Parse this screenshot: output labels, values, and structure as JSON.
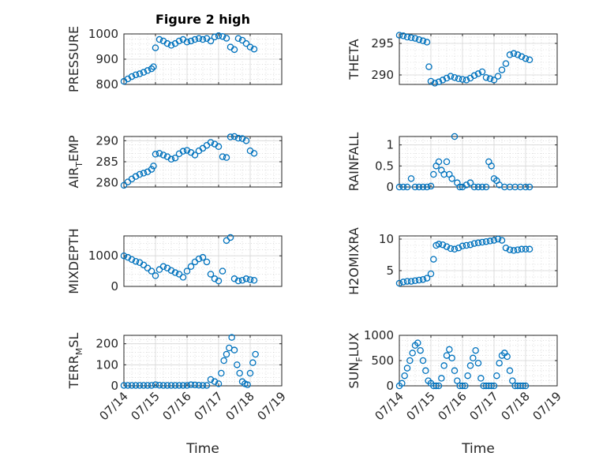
{
  "figure": {
    "title": "Figure 2 high",
    "marker_color": "#0072BD"
  },
  "chart_data": [
    {
      "id": "pressure",
      "type": "scatter",
      "title": "Figure 2 high",
      "ylabel": "PRESSURE",
      "xlim": [
        "07/14",
        "07/19"
      ],
      "ylim": [
        800,
        1000
      ],
      "yticks": [
        800,
        900,
        1000
      ],
      "xticks": [
        "07/14",
        "07/15",
        "07/16",
        "07/17",
        "07/18",
        "07/19"
      ],
      "grid": true,
      "minor_grid": true,
      "x": [
        "07/14 00:00",
        "07/14 03:00",
        "07/14 06:00",
        "07/14 09:00",
        "07/14 12:00",
        "07/14 15:00",
        "07/14 18:00",
        "07/14 21:00",
        "07/14 22:30",
        "07/15 00:00",
        "07/15 03:00",
        "07/15 06:00",
        "07/15 09:00",
        "07/15 12:00",
        "07/15 15:00",
        "07/15 18:00",
        "07/15 21:00",
        "07/16 00:00",
        "07/16 03:00",
        "07/16 06:00",
        "07/16 09:00",
        "07/16 12:00",
        "07/16 15:00",
        "07/16 18:00",
        "07/16 21:00",
        "07/17 00:00",
        "07/17 03:00",
        "07/17 06:00",
        "07/17 09:00",
        "07/17 12:00",
        "07/17 15:00",
        "07/17 18:00",
        "07/17 21:00",
        "07/18 00:00",
        "07/18 03:00"
      ],
      "y": [
        812,
        822,
        831,
        838,
        842,
        848,
        855,
        862,
        870,
        945,
        978,
        972,
        962,
        955,
        962,
        972,
        978,
        968,
        972,
        978,
        982,
        978,
        982,
        972,
        988,
        993,
        990,
        983,
        948,
        938,
        982,
        975,
        962,
        948,
        940
      ]
    },
    {
      "id": "theta",
      "type": "scatter",
      "ylabel": "THETA",
      "xlim": [
        "07/14",
        "07/19"
      ],
      "ylim": [
        288.5,
        296.5
      ],
      "yticks": [
        290,
        295
      ],
      "xticks": [
        "07/14",
        "07/15",
        "07/16",
        "07/17",
        "07/18",
        "07/19"
      ],
      "grid": true,
      "minor_grid": true,
      "x": [
        "07/14 00:00",
        "07/14 03:00",
        "07/14 06:00",
        "07/14 09:00",
        "07/14 12:00",
        "07/14 15:00",
        "07/14 18:00",
        "07/14 21:00",
        "07/14 22:30",
        "07/15 00:00",
        "07/15 03:00",
        "07/15 06:00",
        "07/15 09:00",
        "07/15 12:00",
        "07/15 15:00",
        "07/15 18:00",
        "07/15 21:00",
        "07/16 00:00",
        "07/16 03:00",
        "07/16 06:00",
        "07/16 09:00",
        "07/16 12:00",
        "07/16 15:00",
        "07/16 18:00",
        "07/16 21:00",
        "07/17 00:00",
        "07/17 03:00",
        "07/17 06:00",
        "07/17 09:00",
        "07/17 12:00",
        "07/17 15:00",
        "07/17 18:00",
        "07/17 21:00",
        "07/18 00:00",
        "07/18 03:00"
      ],
      "y": [
        296.3,
        296.2,
        296.0,
        295.9,
        295.8,
        295.6,
        295.4,
        295.2,
        291.3,
        289.0,
        288.7,
        288.9,
        289.2,
        289.5,
        289.8,
        289.6,
        289.4,
        289.3,
        289.2,
        289.5,
        289.9,
        290.2,
        290.5,
        289.6,
        289.4,
        289.2,
        289.8,
        290.8,
        291.8,
        293.2,
        293.4,
        293.2,
        292.9,
        292.6,
        292.4
      ]
    },
    {
      "id": "air_temp",
      "type": "scatter",
      "ylabel": "AIR_TEMP",
      "xlim": [
        "07/14",
        "07/19"
      ],
      "ylim": [
        279,
        291
      ],
      "yticks": [
        280,
        285,
        290
      ],
      "xticks": [
        "07/14",
        "07/15",
        "07/16",
        "07/17",
        "07/18",
        "07/19"
      ],
      "grid": true,
      "minor_grid": true,
      "x": [
        "07/14 00:00",
        "07/14 03:00",
        "07/14 06:00",
        "07/14 09:00",
        "07/14 12:00",
        "07/14 15:00",
        "07/14 18:00",
        "07/14 21:00",
        "07/14 22:30",
        "07/15 00:00",
        "07/15 03:00",
        "07/15 06:00",
        "07/15 09:00",
        "07/15 12:00",
        "07/15 15:00",
        "07/15 18:00",
        "07/15 21:00",
        "07/16 00:00",
        "07/16 03:00",
        "07/16 06:00",
        "07/16 09:00",
        "07/16 12:00",
        "07/16 15:00",
        "07/16 18:00",
        "07/16 21:00",
        "07/17 00:00",
        "07/17 03:00",
        "07/17 06:00",
        "07/17 09:00",
        "07/17 12:00",
        "07/17 15:00",
        "07/17 18:00",
        "07/17 21:00",
        "07/18 00:00",
        "07/18 03:00"
      ],
      "y": [
        279.4,
        280.2,
        280.9,
        281.5,
        282.0,
        282.3,
        282.6,
        283.2,
        284.0,
        286.8,
        287.0,
        286.6,
        286.2,
        285.6,
        285.9,
        286.9,
        287.5,
        287.7,
        287.2,
        286.6,
        287.6,
        288.2,
        288.9,
        289.6,
        289.2,
        288.6,
        286.2,
        286.0,
        290.9,
        291.0,
        290.6,
        290.5,
        290.0,
        287.6,
        287.0
      ]
    },
    {
      "id": "rainfall",
      "type": "scatter",
      "ylabel": "RAINFALL",
      "xlim": [
        "07/14",
        "07/19"
      ],
      "ylim": [
        0,
        1.2
      ],
      "yticks": [
        0,
        0.5,
        1
      ],
      "ytick_labels": [
        "0",
        "0.5",
        "1"
      ],
      "xticks": [
        "07/14",
        "07/15",
        "07/16",
        "07/17",
        "07/18",
        "07/19"
      ],
      "grid": true,
      "minor_grid": true,
      "x": [
        "07/14 00:00",
        "07/14 03:00",
        "07/14 06:00",
        "07/14 09:00",
        "07/14 12:00",
        "07/14 15:00",
        "07/14 18:00",
        "07/14 21:00",
        "07/15 00:00",
        "07/15 02:00",
        "07/15 04:00",
        "07/15 06:00",
        "07/15 08:00",
        "07/15 10:00",
        "07/15 12:00",
        "07/15 14:00",
        "07/15 16:00",
        "07/15 18:00",
        "07/15 20:00",
        "07/15 22:00",
        "07/16 00:00",
        "07/16 03:00",
        "07/16 06:00",
        "07/16 09:00",
        "07/16 12:00",
        "07/16 15:00",
        "07/16 18:00",
        "07/16 20:00",
        "07/16 22:00",
        "07/17 00:00",
        "07/17 02:00",
        "07/17 04:00",
        "07/17 08:00",
        "07/17 12:00",
        "07/17 16:00",
        "07/17 20:00",
        "07/18 00:00",
        "07/18 03:00"
      ],
      "y": [
        0,
        0,
        0,
        0.2,
        0,
        0,
        0,
        0,
        0.02,
        0.3,
        0.5,
        0.6,
        0.4,
        0.3,
        0.6,
        0.3,
        0.2,
        1.2,
        0.1,
        0,
        0,
        0.05,
        0.1,
        0,
        0,
        0,
        0,
        0.6,
        0.5,
        0.2,
        0.15,
        0.05,
        0,
        0,
        0,
        0,
        0,
        0
      ]
    },
    {
      "id": "mixdepth",
      "type": "scatter",
      "ylabel": "MIXDEPTH",
      "xlim": [
        "07/14",
        "07/19"
      ],
      "ylim": [
        0,
        1650
      ],
      "yticks": [
        0,
        1000
      ],
      "xticks": [
        "07/14",
        "07/15",
        "07/16",
        "07/17",
        "07/18",
        "07/19"
      ],
      "grid": true,
      "minor_grid": true,
      "x": [
        "07/14 00:00",
        "07/14 03:00",
        "07/14 06:00",
        "07/14 09:00",
        "07/14 12:00",
        "07/14 15:00",
        "07/14 18:00",
        "07/14 21:00",
        "07/15 00:00",
        "07/15 03:00",
        "07/15 06:00",
        "07/15 09:00",
        "07/15 12:00",
        "07/15 15:00",
        "07/15 18:00",
        "07/15 21:00",
        "07/16 00:00",
        "07/16 03:00",
        "07/16 06:00",
        "07/16 09:00",
        "07/16 12:00",
        "07/16 15:00",
        "07/16 18:00",
        "07/16 21:00",
        "07/17 00:00",
        "07/17 03:00",
        "07/17 06:00",
        "07/17 09:00",
        "07/17 12:00",
        "07/17 15:00",
        "07/17 18:00",
        "07/17 21:00",
        "07/18 00:00",
        "07/18 03:00"
      ],
      "y": [
        1000,
        950,
        880,
        820,
        780,
        700,
        600,
        500,
        350,
        550,
        650,
        600,
        520,
        450,
        400,
        300,
        500,
        650,
        800,
        900,
        950,
        800,
        400,
        250,
        180,
        500,
        1500,
        1600,
        250,
        180,
        200,
        250,
        220,
        200
      ]
    },
    {
      "id": "h2omixra",
      "type": "scatter",
      "ylabel": "H2OMIXRA",
      "xlim": [
        "07/14",
        "07/19"
      ],
      "ylim": [
        2.5,
        10.5
      ],
      "yticks": [
        5,
        10
      ],
      "xticks": [
        "07/14",
        "07/15",
        "07/16",
        "07/17",
        "07/18",
        "07/19"
      ],
      "grid": true,
      "minor_grid": true,
      "x": [
        "07/14 00:00",
        "07/14 03:00",
        "07/14 06:00",
        "07/14 09:00",
        "07/14 12:00",
        "07/14 15:00",
        "07/14 18:00",
        "07/14 21:00",
        "07/15 00:00",
        "07/15 02:00",
        "07/15 04:00",
        "07/15 06:00",
        "07/15 09:00",
        "07/15 12:00",
        "07/15 15:00",
        "07/15 18:00",
        "07/15 21:00",
        "07/16 00:00",
        "07/16 03:00",
        "07/16 06:00",
        "07/16 09:00",
        "07/16 12:00",
        "07/16 15:00",
        "07/16 18:00",
        "07/16 21:00",
        "07/17 00:00",
        "07/17 03:00",
        "07/17 06:00",
        "07/17 09:00",
        "07/17 12:00",
        "07/17 15:00",
        "07/17 18:00",
        "07/17 21:00",
        "07/18 00:00",
        "07/18 03:00"
      ],
      "y": [
        3.0,
        3.2,
        3.3,
        3.3,
        3.4,
        3.5,
        3.6,
        3.8,
        4.5,
        6.8,
        9.0,
        9.2,
        9.1,
        8.8,
        8.5,
        8.4,
        8.6,
        8.9,
        9.0,
        9.1,
        9.3,
        9.4,
        9.5,
        9.6,
        9.7,
        9.8,
        10.0,
        9.8,
        8.6,
        8.3,
        8.2,
        8.3,
        8.4,
        8.4,
        8.4
      ]
    },
    {
      "id": "terr_msl",
      "type": "scatter",
      "ylabel": "TERR_MSL",
      "xlim": [
        "07/14",
        "07/19"
      ],
      "ylim": [
        0,
        240
      ],
      "yticks": [
        0,
        100,
        200
      ],
      "xticks": [
        "07/14",
        "07/15",
        "07/16",
        "07/17",
        "07/18",
        "07/19"
      ],
      "grid": true,
      "minor_grid": true,
      "x": [
        "07/14 00:00",
        "07/14 03:00",
        "07/14 06:00",
        "07/14 09:00",
        "07/14 12:00",
        "07/14 15:00",
        "07/14 18:00",
        "07/14 21:00",
        "07/15 00:00",
        "07/15 03:00",
        "07/15 06:00",
        "07/15 09:00",
        "07/15 12:00",
        "07/15 15:00",
        "07/15 18:00",
        "07/15 21:00",
        "07/16 00:00",
        "07/16 03:00",
        "07/16 06:00",
        "07/16 09:00",
        "07/16 12:00",
        "07/16 15:00",
        "07/16 18:00",
        "07/16 21:00",
        "07/17 00:00",
        "07/17 02:00",
        "07/17 04:00",
        "07/17 06:00",
        "07/17 08:00",
        "07/17 10:00",
        "07/17 12:00",
        "07/17 14:00",
        "07/17 16:00",
        "07/17 18:00",
        "07/17 20:00",
        "07/17 22:00",
        "07/18 00:00",
        "07/18 02:00",
        "07/18 04:00"
      ],
      "y": [
        2,
        2,
        2,
        2,
        2,
        2,
        2,
        2,
        5,
        3,
        2,
        2,
        2,
        2,
        2,
        2,
        2,
        5,
        4,
        3,
        2,
        2,
        30,
        20,
        10,
        60,
        120,
        150,
        180,
        230,
        170,
        100,
        60,
        20,
        10,
        5,
        60,
        110,
        150
      ]
    },
    {
      "id": "sun_flux",
      "type": "scatter",
      "ylabel": "SUN_FLUX",
      "xlim": [
        "07/14",
        "07/19"
      ],
      "ylim": [
        0,
        1000
      ],
      "yticks": [
        0,
        500,
        1000
      ],
      "xticks": [
        "07/14",
        "07/15",
        "07/16",
        "07/17",
        "07/18",
        "07/19"
      ],
      "grid": true,
      "minor_grid": true,
      "x": [
        "07/14 00:00",
        "07/14 02:00",
        "07/14 04:00",
        "07/14 06:00",
        "07/14 08:00",
        "07/14 10:00",
        "07/14 12:00",
        "07/14 14:00",
        "07/14 16:00",
        "07/14 18:00",
        "07/14 20:00",
        "07/14 22:00",
        "07/15 00:00",
        "07/15 02:00",
        "07/15 04:00",
        "07/15 06:00",
        "07/15 08:00",
        "07/15 10:00",
        "07/15 12:00",
        "07/15 14:00",
        "07/15 16:00",
        "07/15 18:00",
        "07/15 20:00",
        "07/15 22:00",
        "07/16 00:00",
        "07/16 02:00",
        "07/16 04:00",
        "07/16 06:00",
        "07/16 08:00",
        "07/16 10:00",
        "07/16 12:00",
        "07/16 14:00",
        "07/16 16:00",
        "07/16 18:00",
        "07/16 20:00",
        "07/16 22:00",
        "07/17 00:00",
        "07/17 02:00",
        "07/17 04:00",
        "07/17 06:00",
        "07/17 08:00",
        "07/17 10:00",
        "07/17 12:00",
        "07/17 14:00",
        "07/17 16:00",
        "07/17 18:00",
        "07/17 20:00",
        "07/17 22:00",
        "07/18 00:00"
      ],
      "y": [
        0,
        50,
        200,
        350,
        500,
        650,
        800,
        850,
        700,
        500,
        300,
        100,
        50,
        0,
        0,
        0,
        150,
        400,
        600,
        720,
        550,
        300,
        100,
        0,
        0,
        0,
        200,
        400,
        550,
        700,
        450,
        150,
        0,
        0,
        0,
        0,
        0,
        200,
        450,
        600,
        650,
        580,
        300,
        100,
        0,
        0,
        0,
        0,
        0
      ]
    }
  ],
  "panels": [
    {
      "ylabel_main": "PRESSURE",
      "ylabel_sub": ""
    },
    {
      "ylabel_main": "THETA",
      "ylabel_sub": ""
    },
    {
      "ylabel_main": "AIR",
      "ylabel_sub": "T",
      "ylabel_tail": "EMP"
    },
    {
      "ylabel_main": "RAINFALL",
      "ylabel_sub": ""
    },
    {
      "ylabel_main": "MIXDEPTH",
      "ylabel_sub": ""
    },
    {
      "ylabel_main": "H2OMIXRA",
      "ylabel_sub": ""
    },
    {
      "ylabel_main": "TERR",
      "ylabel_sub": "M",
      "ylabel_tail": "SL"
    },
    {
      "ylabel_main": "SUN",
      "ylabel_sub": "F",
      "ylabel_tail": "LUX"
    }
  ],
  "xaxis": {
    "label": "Time",
    "ticks": [
      "07/14",
      "07/15",
      "07/16",
      "07/17",
      "07/18",
      "07/19"
    ]
  }
}
